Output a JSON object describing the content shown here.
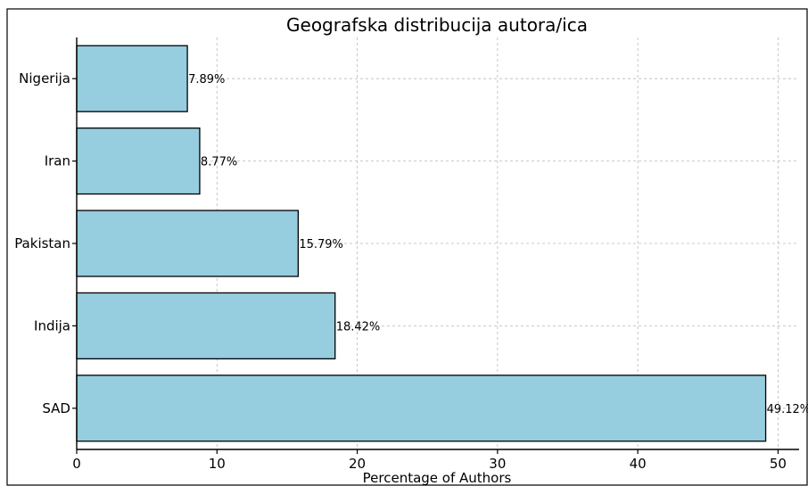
{
  "chart_data": {
    "type": "bar",
    "orientation": "horizontal",
    "title": "Geografska distribucija autora/ica",
    "xlabel": "Percentage of Authors",
    "ylabel": "",
    "categories": [
      "SAD",
      "Indija",
      "Pakistan",
      "Iran",
      "Nigerija"
    ],
    "values": [
      49.12,
      18.42,
      15.79,
      8.77,
      7.89
    ],
    "data_labels": [
      "49.12%",
      "18.42%",
      "15.79%",
      "8.77%",
      "7.89%"
    ],
    "xlim": [
      0,
      51.5
    ],
    "xticks": [
      0,
      10,
      20,
      30,
      40,
      50
    ],
    "grid": true,
    "colors": {
      "bar": "#96cddf",
      "edge": "#000000",
      "grid": "#b8b8b8"
    }
  }
}
